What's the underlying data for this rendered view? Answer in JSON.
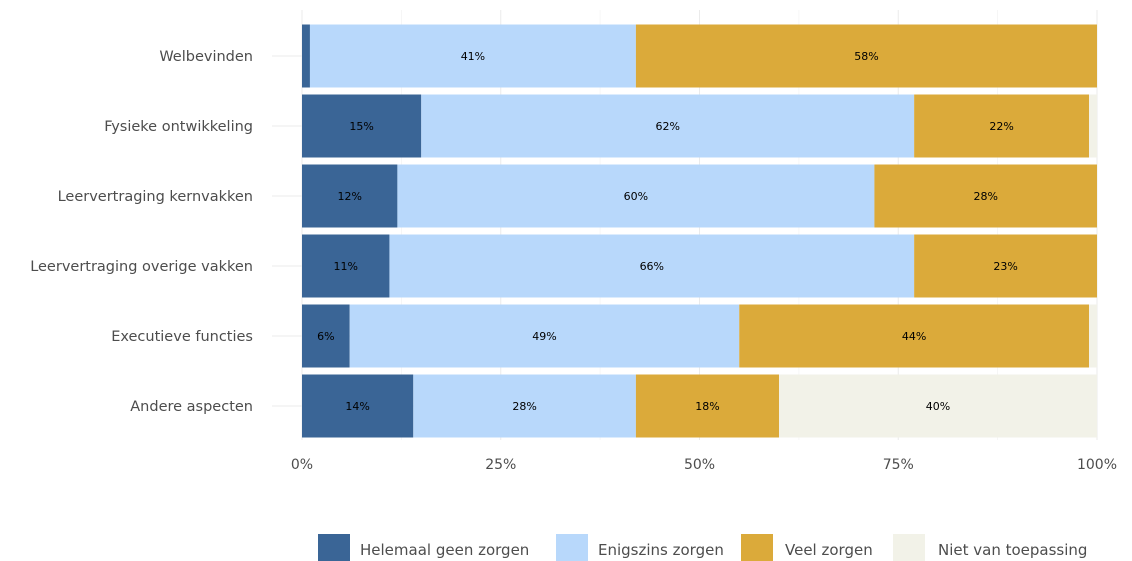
{
  "chart_data": {
    "type": "bar",
    "orientation": "horizontal",
    "stacked": true,
    "categories": [
      "Welbevinden",
      "Fysieke ontwikkeling",
      "Leervertraging kernvakken",
      "Leervertraging overige vakken",
      "Executieve functies",
      "Andere aspecten"
    ],
    "series": [
      {
        "name": "Helemaal geen zorgen",
        "color": "#3a6596",
        "values": [
          1,
          15,
          12,
          11,
          6,
          14
        ],
        "labels": [
          "",
          "15%",
          "12%",
          "11%",
          "6%",
          "14%"
        ]
      },
      {
        "name": "Enigszins zorgen",
        "color": "#b8d8fb",
        "values": [
          41,
          62,
          60,
          66,
          49,
          28
        ],
        "labels": [
          "41%",
          "62%",
          "60%",
          "66%",
          "49%",
          "28%"
        ]
      },
      {
        "name": "Veel zorgen",
        "color": "#dbaa3a",
        "values": [
          58,
          22,
          28,
          23,
          44,
          18
        ],
        "labels": [
          "58%",
          "22%",
          "28%",
          "23%",
          "44%",
          "18%"
        ]
      },
      {
        "name": "Niet van toepassing",
        "color": "#f2f2e8",
        "values": [
          0,
          1,
          0,
          0,
          1,
          40
        ],
        "labels": [
          "",
          "",
          "",
          "",
          "",
          "40%"
        ]
      }
    ],
    "x_ticks": [
      "0%",
      "25%",
      "50%",
      "75%",
      "100%"
    ],
    "xlim": [
      0,
      100
    ],
    "grid": true,
    "legend_position": "bottom"
  }
}
